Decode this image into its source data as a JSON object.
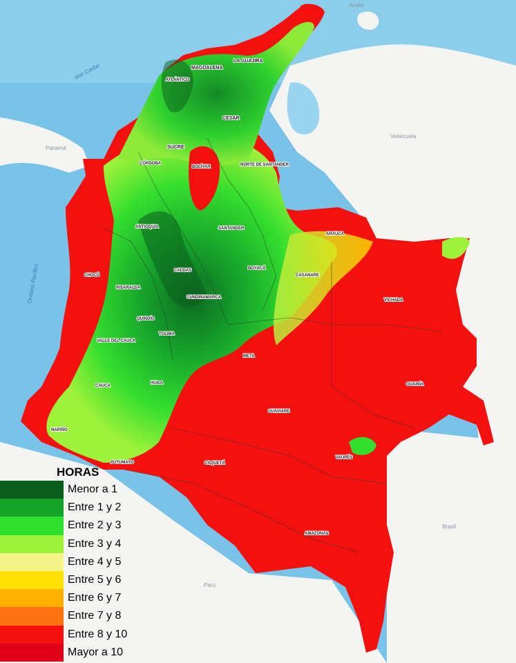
{
  "map": {
    "seas": {
      "caribbean": "Mar Caribe",
      "pacific": "Océano Pacífico"
    },
    "countries": {
      "venezuela": "Venezuela",
      "panama": "Panamá",
      "brasil": "Brasil",
      "peru": "Perú",
      "aruba": "Aruba"
    },
    "departments": [
      {
        "id": "la-guajira",
        "label": "LA GUAJIRA"
      },
      {
        "id": "magdalena",
        "label": "MAGDALENA"
      },
      {
        "id": "atlantico",
        "label": "ATLÁNTICO"
      },
      {
        "id": "cesar",
        "label": "CESAR"
      },
      {
        "id": "sucre",
        "label": "SUCRE"
      },
      {
        "id": "cordoba",
        "label": "CÓRDOBA"
      },
      {
        "id": "bolivar",
        "label": "BOLÍVAR"
      },
      {
        "id": "norte-de-santander",
        "label": "NORTE DE SANTANDER"
      },
      {
        "id": "antioquia",
        "label": "ANTIOQUIA"
      },
      {
        "id": "santander",
        "label": "SANTANDER"
      },
      {
        "id": "arauca",
        "label": "ARAUCA"
      },
      {
        "id": "choco",
        "label": "CHOCÓ"
      },
      {
        "id": "caldas",
        "label": "CALDAS"
      },
      {
        "id": "boyaca",
        "label": "BOYACÁ"
      },
      {
        "id": "casanare",
        "label": "CASANARE"
      },
      {
        "id": "risaralda",
        "label": "RISARALDA"
      },
      {
        "id": "cundinamarca",
        "label": "CUNDINAMARCA"
      },
      {
        "id": "vichada",
        "label": "VICHADA"
      },
      {
        "id": "quindio",
        "label": "QUINDÍO"
      },
      {
        "id": "tolima",
        "label": "TOLIMA"
      },
      {
        "id": "valle-del-cauca",
        "label": "VALLE DEL CAUCA"
      },
      {
        "id": "meta",
        "label": "META"
      },
      {
        "id": "guainia",
        "label": "GUAINÍA"
      },
      {
        "id": "cauca",
        "label": "CAUCA"
      },
      {
        "id": "huila",
        "label": "HUILA"
      },
      {
        "id": "guaviare",
        "label": "GUAVIARE"
      },
      {
        "id": "narino",
        "label": "NARIÑO"
      },
      {
        "id": "vaupes",
        "label": "VAUPÉS"
      },
      {
        "id": "caqueta",
        "label": "CAQUETÁ"
      },
      {
        "id": "putumayo",
        "label": "PUTUMAYO"
      },
      {
        "id": "amazonas",
        "label": "AMAZONAS"
      }
    ]
  },
  "legend": {
    "title": "HORAS",
    "items": [
      {
        "label": "Menor a 1",
        "color": "#0b5d1e"
      },
      {
        "label": "Entre 1 y 2",
        "color": "#15a32a"
      },
      {
        "label": "Entre 2 y 3",
        "color": "#2fe02f"
      },
      {
        "label": "Entre 3 y 4",
        "color": "#9ef23a"
      },
      {
        "label": "Entre 4 y 5",
        "color": "#f3f58a"
      },
      {
        "label": "Entre 5 y 6",
        "color": "#ffe000"
      },
      {
        "label": "Entre 6 y 7",
        "color": "#ffb000"
      },
      {
        "label": "Entre 7 y 8",
        "color": "#ff7010"
      },
      {
        "label": "Entre 8 y 10",
        "color": "#f51010"
      },
      {
        "label": "Mayor a 10",
        "color": "#e0001a"
      }
    ]
  }
}
